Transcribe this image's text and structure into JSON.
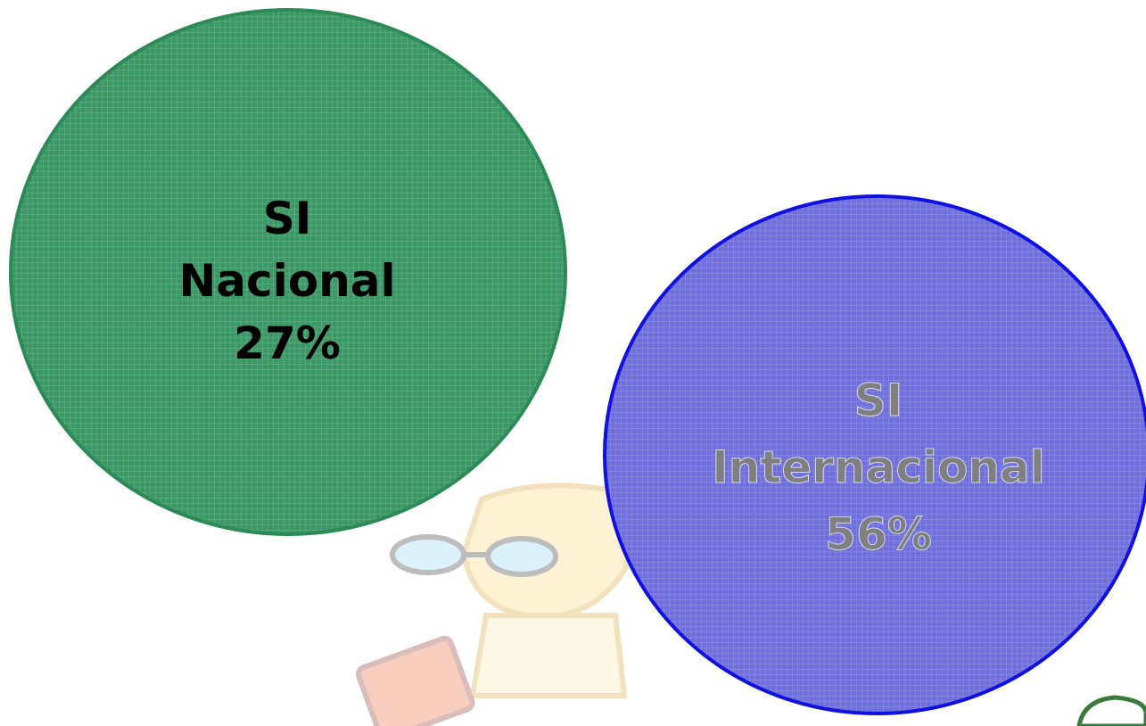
{
  "circles": [
    {
      "lines": [
        "SI",
        "Nacional",
        "27%"
      ]
    },
    {
      "lines": [
        "SI",
        "Internacional",
        "56%"
      ]
    }
  ]
}
